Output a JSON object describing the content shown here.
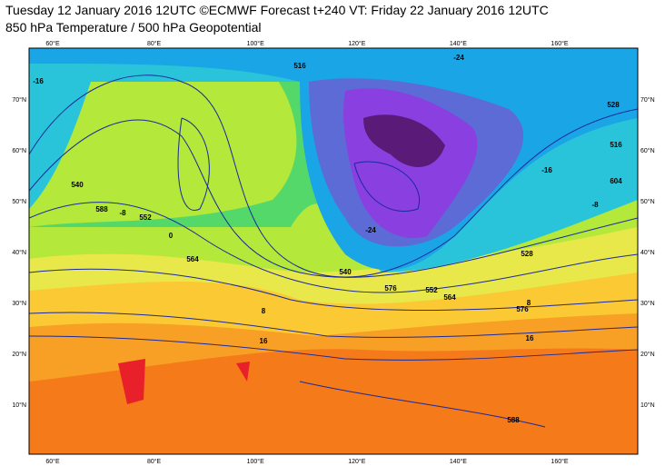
{
  "header": {
    "title": "Tuesday 12 January 2016 12UTC ©ECMWF Forecast t+240 VT: Friday 22 January 2016 12UTC",
    "subtitle": "850 hPa Temperature / 500 hPa Geopotential"
  },
  "map": {
    "longitudes": [
      "60°E",
      "80°E",
      "100°E",
      "120°E",
      "140°E",
      "160°E"
    ],
    "latitudes": [
      "70°N",
      "60°N",
      "50°N",
      "40°N",
      "30°N",
      "20°N",
      "10°N"
    ],
    "contour_labels": [
      "-16",
      "-24",
      "516",
      "528",
      "540",
      "552",
      "564",
      "576",
      "588",
      "-8",
      "0",
      "8",
      "16",
      "-24",
      "604",
      "-16",
      "516",
      "528",
      "540",
      "552",
      "564",
      "576",
      "-8",
      "8",
      "16",
      "588"
    ]
  }
}
